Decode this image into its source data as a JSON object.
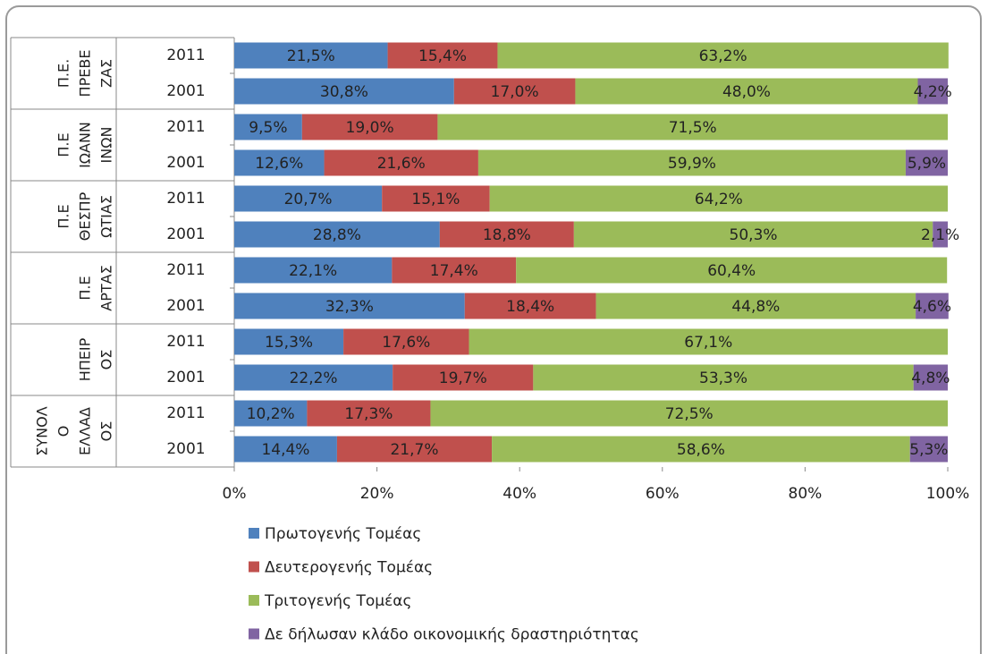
{
  "chart_data": {
    "type": "bar",
    "orientation": "horizontal",
    "stacked": true,
    "groups": [
      {
        "label": [
          "Π.Ε.",
          "ΠΡΕΒΕ",
          "ΖΑΣ"
        ],
        "categories": [
          "2011",
          "2001"
        ]
      },
      {
        "label": [
          "Π.Ε",
          "ΙΩΑΝΝ",
          "ΙΝΩΝ"
        ],
        "categories": [
          "2011",
          "2001"
        ]
      },
      {
        "label": [
          "Π.Ε",
          "ΘΕΣΠΡ",
          "ΩΤΙΑΣ"
        ],
        "categories": [
          "2011",
          "2001"
        ]
      },
      {
        "label": [
          "Π.Ε",
          "ΑΡΤΑΣ"
        ],
        "categories": [
          "2011",
          "2001"
        ]
      },
      {
        "label": [
          "ΗΠΕΙΡ",
          "ΟΣ"
        ],
        "categories": [
          "2011",
          "2001"
        ]
      },
      {
        "label": [
          "ΣΥΝΟΛ",
          "Ο",
          "ΕΛΛΑΔ",
          "ΟΣ"
        ],
        "categories": [
          "2011",
          "2001"
        ]
      }
    ],
    "series": [
      {
        "name": "Πρωτογενής Τομέας",
        "color": "#4f81bd",
        "values": [
          21.5,
          30.8,
          9.5,
          12.6,
          20.7,
          28.8,
          22.1,
          32.3,
          15.3,
          22.2,
          10.2,
          14.4
        ],
        "value_labels": [
          "21,5%",
          "30,8%",
          "9,5%",
          "12,6%",
          "20,7%",
          "28,8%",
          "22,1%",
          "32,3%",
          "15,3%",
          "22,2%",
          "10,2%",
          "14,4%"
        ]
      },
      {
        "name": "Δευτερογενής Τομέας",
        "color": "#c0504d",
        "values": [
          15.4,
          17.0,
          19.0,
          21.6,
          15.1,
          18.8,
          17.4,
          18.4,
          17.6,
          19.7,
          17.3,
          21.7
        ],
        "value_labels": [
          "15,4%",
          "17,0%",
          "19,0%",
          "21,6%",
          "15,1%",
          "18,8%",
          "17,4%",
          "18,4%",
          "17,6%",
          "19,7%",
          "17,3%",
          "21,7%"
        ]
      },
      {
        "name": "Τριτογενής Τομέας",
        "color": "#9bbb59",
        "values": [
          63.2,
          48.0,
          71.5,
          59.9,
          64.2,
          50.3,
          60.4,
          44.8,
          67.1,
          53.3,
          72.5,
          58.6
        ],
        "value_labels": [
          "63,2%",
          "48,0%",
          "71,5%",
          "59,9%",
          "64,2%",
          "50,3%",
          "60,4%",
          "44,8%",
          "67,1%",
          "53,3%",
          "72,5%",
          "58,6%"
        ]
      },
      {
        "name": "Δε δήλωσαν κλάδο οικονομικής δραστηριότητας",
        "color": "#8064a2",
        "values": [
          null,
          4.2,
          null,
          5.9,
          null,
          2.1,
          null,
          4.6,
          null,
          4.8,
          null,
          5.3
        ],
        "value_labels": [
          null,
          "4,2%",
          null,
          "5,9%",
          null,
          "2,1%",
          null,
          "4,6%",
          null,
          "4,8%",
          null,
          "5,3%"
        ]
      }
    ],
    "xlim": [
      0,
      100
    ],
    "xticks": [
      {
        "value": 0,
        "label": "0%"
      },
      {
        "value": 20,
        "label": "20%"
      },
      {
        "value": 40,
        "label": "40%"
      },
      {
        "value": 60,
        "label": "60%"
      },
      {
        "value": 80,
        "label": "80%"
      },
      {
        "value": 100,
        "label": "100%"
      }
    ],
    "legend": "bottom-left"
  }
}
